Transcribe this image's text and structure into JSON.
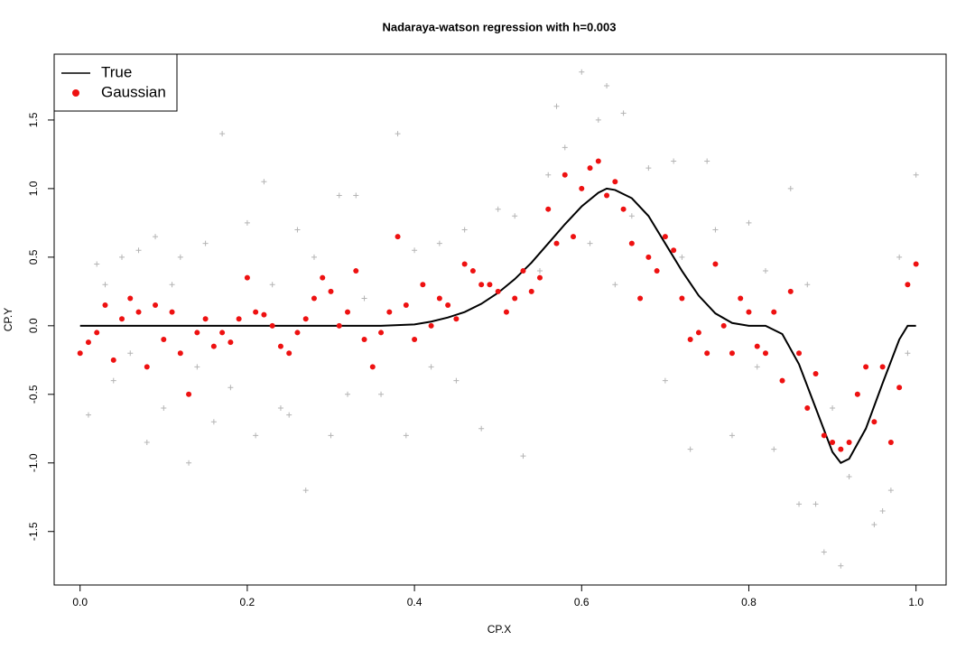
{
  "chart_data": {
    "type": "scatter",
    "title": "Nadaraya-watson regression with h=0.003",
    "x_label": "CP.X",
    "y_label": "CP.Y",
    "xlim": [
      -0.031,
      1.036
    ],
    "ylim": [
      -1.89,
      1.98
    ],
    "xticks": [
      {
        "value": 0,
        "label": "0.0"
      },
      0.2,
      0.4,
      0.6,
      0.8,
      {
        "value": 1,
        "label": "1.0"
      }
    ],
    "yticks": [
      -1.5,
      {
        "value": -1,
        "label": "-1.0"
      },
      -0.5,
      {
        "value": 0,
        "label": "0.0"
      },
      0.5,
      {
        "value": 1,
        "label": "1.0"
      },
      1.5
    ],
    "legend": "top-left",
    "observations": {
      "color": "#b4b4b4",
      "x": [
        0.01,
        0.02,
        0.03,
        0.04,
        0.05,
        0.06,
        0.07,
        0.08,
        0.09,
        0.1,
        0.11,
        0.12,
        0.13,
        0.14,
        0.15,
        0.16,
        0.17,
        0.18,
        0.2,
        0.21,
        0.22,
        0.23,
        0.24,
        0.25,
        0.26,
        0.27,
        0.28,
        0.3,
        0.31,
        0.32,
        0.33,
        0.34,
        0.36,
        0.38,
        0.39,
        0.4,
        0.42,
        0.43,
        0.45,
        0.46,
        0.48,
        0.5,
        0.52,
        0.53,
        0.55,
        0.56,
        0.57,
        0.58,
        0.6,
        0.61,
        0.62,
        0.63,
        0.64,
        0.65,
        0.66,
        0.68,
        0.7,
        0.71,
        0.72,
        0.73,
        0.75,
        0.76,
        0.78,
        0.8,
        0.81,
        0.82,
        0.83,
        0.85,
        0.86,
        0.87,
        0.88,
        0.89,
        0.9,
        0.91,
        0.92,
        0.93,
        0.95,
        0.96,
        0.97,
        0.98,
        0.99,
        1.0
      ],
      "values": [
        -0.65,
        0.45,
        0.3,
        -0.4,
        0.5,
        -0.2,
        0.55,
        -0.85,
        0.65,
        -0.6,
        0.3,
        0.5,
        -1.0,
        -0.3,
        0.6,
        -0.7,
        1.4,
        -0.45,
        0.75,
        -0.8,
        1.05,
        0.3,
        -0.6,
        -0.65,
        0.7,
        -1.2,
        0.5,
        -0.8,
        0.95,
        -0.5,
        0.95,
        0.2,
        -0.5,
        1.4,
        -0.8,
        0.55,
        -0.3,
        0.6,
        -0.4,
        0.7,
        -0.75,
        0.85,
        0.8,
        -0.95,
        0.4,
        1.1,
        1.6,
        1.3,
        1.85,
        0.6,
        1.5,
        1.75,
        0.3,
        1.55,
        0.8,
        1.15,
        -0.4,
        1.2,
        0.5,
        -0.9,
        1.2,
        0.7,
        -0.8,
        0.75,
        -0.3,
        0.4,
        -0.9,
        1.0,
        -1.3,
        0.3,
        -1.3,
        -1.65,
        -0.6,
        -1.75,
        -1.1,
        -0.5,
        -1.45,
        -1.35,
        -1.2,
        0.5,
        -0.2,
        1.1
      ]
    },
    "series": [
      {
        "name": "True",
        "color": "#000000",
        "x": [
          0,
          0.1,
          0.2,
          0.3,
          0.36,
          0.38,
          0.4,
          0.42,
          0.44,
          0.46,
          0.48,
          0.5,
          0.52,
          0.54,
          0.56,
          0.58,
          0.6,
          0.62,
          0.63,
          0.64,
          0.66,
          0.68,
          0.7,
          0.72,
          0.74,
          0.76,
          0.78,
          0.8,
          0.82,
          0.84,
          0.86,
          0.88,
          0.9,
          0.91,
          0.92,
          0.94,
          0.96,
          0.98,
          0.99,
          1.0
        ],
        "values": [
          0,
          0,
          0,
          0,
          0,
          0.005,
          0.01,
          0.03,
          0.06,
          0.1,
          0.16,
          0.24,
          0.34,
          0.46,
          0.6,
          0.74,
          0.87,
          0.97,
          1.0,
          0.99,
          0.93,
          0.8,
          0.6,
          0.4,
          0.22,
          0.09,
          0.02,
          0,
          0,
          -0.06,
          -0.28,
          -0.6,
          -0.92,
          -1.0,
          -0.97,
          -0.75,
          -0.42,
          -0.1,
          0,
          0
        ]
      },
      {
        "name": "Gaussian",
        "color": "#ee1111",
        "x": [
          0,
          0.01,
          0.02,
          0.03,
          0.04,
          0.05,
          0.06,
          0.07,
          0.08,
          0.09,
          0.1,
          0.11,
          0.12,
          0.13,
          0.14,
          0.15,
          0.16,
          0.17,
          0.18,
          0.19,
          0.2,
          0.21,
          0.22,
          0.23,
          0.24,
          0.25,
          0.26,
          0.27,
          0.28,
          0.29,
          0.3,
          0.31,
          0.32,
          0.33,
          0.34,
          0.35,
          0.36,
          0.37,
          0.38,
          0.39,
          0.4,
          0.41,
          0.42,
          0.43,
          0.44,
          0.45,
          0.46,
          0.47,
          0.48,
          0.49,
          0.5,
          0.51,
          0.52,
          0.53,
          0.54,
          0.55,
          0.56,
          0.57,
          0.58,
          0.59,
          0.6,
          0.61,
          0.62,
          0.63,
          0.64,
          0.65,
          0.66,
          0.67,
          0.68,
          0.69,
          0.7,
          0.71,
          0.72,
          0.73,
          0.74,
          0.75,
          0.76,
          0.77,
          0.78,
          0.79,
          0.8,
          0.81,
          0.82,
          0.83,
          0.84,
          0.85,
          0.86,
          0.87,
          0.88,
          0.89,
          0.9,
          0.91,
          0.92,
          0.93,
          0.94,
          0.95,
          0.96,
          0.97,
          0.98,
          0.99,
          1.0
        ],
        "values": [
          -0.2,
          -0.12,
          -0.05,
          0.15,
          -0.25,
          0.05,
          0.2,
          0.1,
          -0.3,
          0.15,
          -0.1,
          0.1,
          -0.2,
          -0.5,
          -0.05,
          0.05,
          -0.15,
          -0.05,
          -0.12,
          0.05,
          0.35,
          0.1,
          0.08,
          0.0,
          -0.15,
          -0.2,
          -0.05,
          0.05,
          0.2,
          0.35,
          0.25,
          0.0,
          0.1,
          0.4,
          -0.1,
          -0.3,
          -0.05,
          0.1,
          0.65,
          0.15,
          -0.1,
          0.3,
          0.0,
          0.2,
          0.15,
          0.05,
          0.45,
          0.4,
          0.3,
          0.3,
          0.25,
          0.1,
          0.2,
          0.4,
          0.25,
          0.35,
          0.85,
          0.6,
          1.1,
          0.65,
          1.0,
          1.15,
          1.2,
          0.95,
          1.05,
          0.85,
          0.6,
          0.2,
          0.5,
          0.4,
          0.65,
          0.55,
          0.2,
          -0.1,
          -0.05,
          -0.2,
          0.45,
          0.0,
          -0.2,
          0.2,
          0.1,
          -0.15,
          -0.2,
          0.1,
          -0.4,
          0.25,
          -0.2,
          -0.6,
          -0.35,
          -0.8,
          -0.85,
          -0.9,
          -0.85,
          -0.5,
          -0.3,
          -0.7,
          -0.3,
          -0.85,
          -0.45,
          0.3,
          0.45
        ]
      }
    ]
  }
}
